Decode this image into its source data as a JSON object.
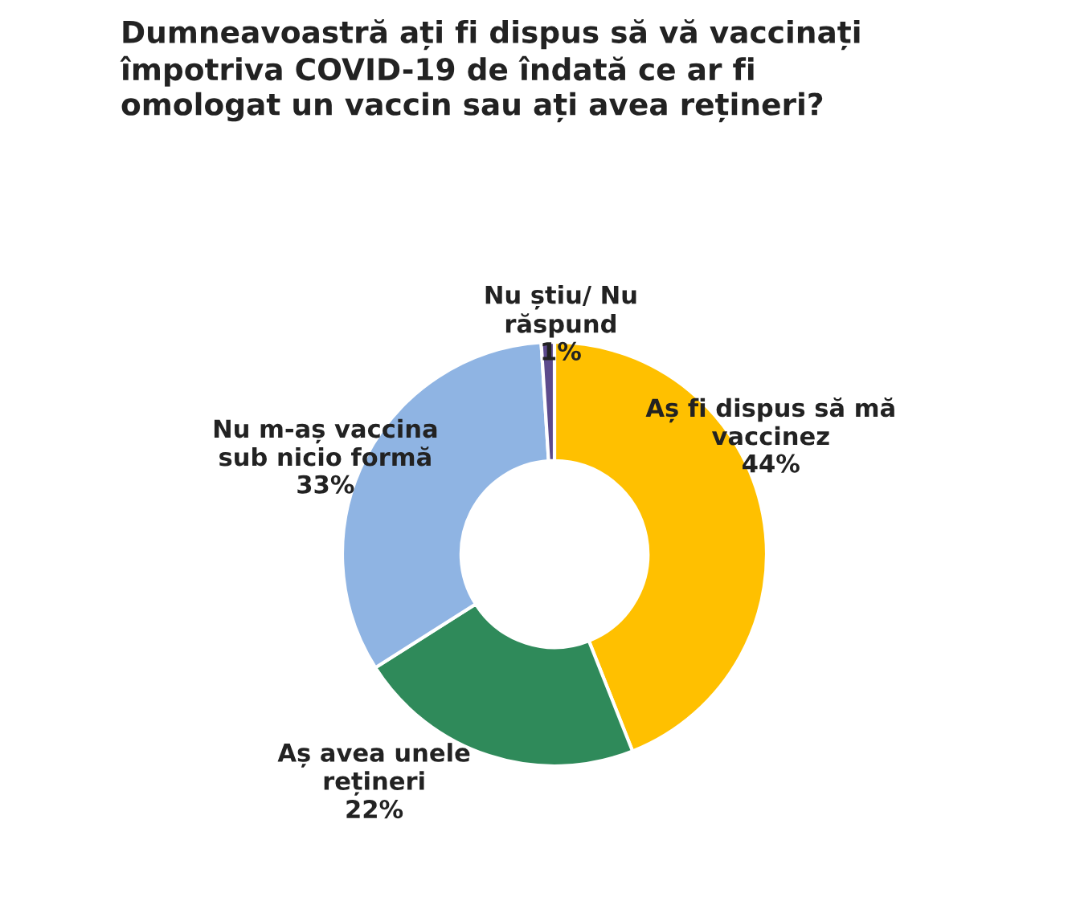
{
  "chart_data": {
    "type": "donut",
    "title": "Dumneavoastră ați fi dispus să vă vaccinați\nîmpotriva COVID-19 de îndată ce ar fi\nomologat un vaccin sau ați avea rețineri?",
    "categories": [
      "Aș fi dispus să mă\nvaccinez",
      "Aș avea unele\nrețineri",
      "Nu m-aș vaccina\nsub nicio formă",
      "Nu știu/ Nu\nrăspund"
    ],
    "values": [
      44,
      22,
      33,
      1
    ],
    "colors": [
      "#ffc000",
      "#2f8a5a",
      "#8fb4e3",
      "#5c4a8c"
    ],
    "value_labels": [
      "44%",
      "22%",
      "33%",
      "1%"
    ]
  }
}
